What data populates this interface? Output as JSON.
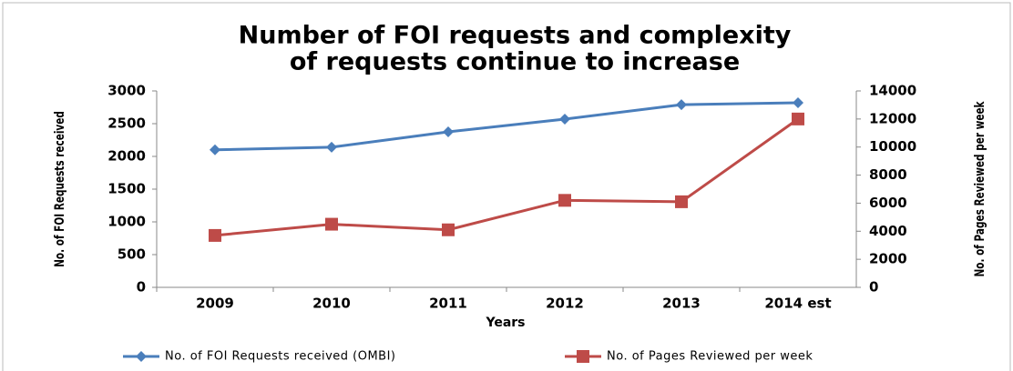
{
  "chart_data": {
    "type": "line",
    "title": [
      "Number of FOI requests and complexity",
      "of requests continue to increase"
    ],
    "xlabel": "Years",
    "ylabel": "No. of FOI Requests received",
    "y2label": "No. of Pages Reviewed per week",
    "categories": [
      "2009",
      "2010",
      "2011",
      "2012",
      "2013",
      "2014 est"
    ],
    "series": [
      {
        "name": "No. of FOI Requests received (OMBI)",
        "color": "#4a7ebb",
        "marker": "diamond",
        "values": [
          2100,
          2140,
          2375,
          2570,
          2790,
          2820
        ]
      },
      {
        "name": "No. of Pages Reviewed per week",
        "color": "#be4b48",
        "marker": "square",
        "axis": "y2",
        "values": [
          3700,
          4500,
          4100,
          6200,
          6100,
          12000
        ]
      }
    ],
    "ylim": [
      0,
      3000
    ],
    "yticks": [
      0,
      500,
      1000,
      1500,
      2000,
      2500,
      3000
    ],
    "y2lim": [
      0,
      14000
    ],
    "y2ticks": [
      0,
      2000,
      4000,
      6000,
      8000,
      10000,
      12000,
      14000
    ],
    "grid": false,
    "legend": "bottom"
  }
}
